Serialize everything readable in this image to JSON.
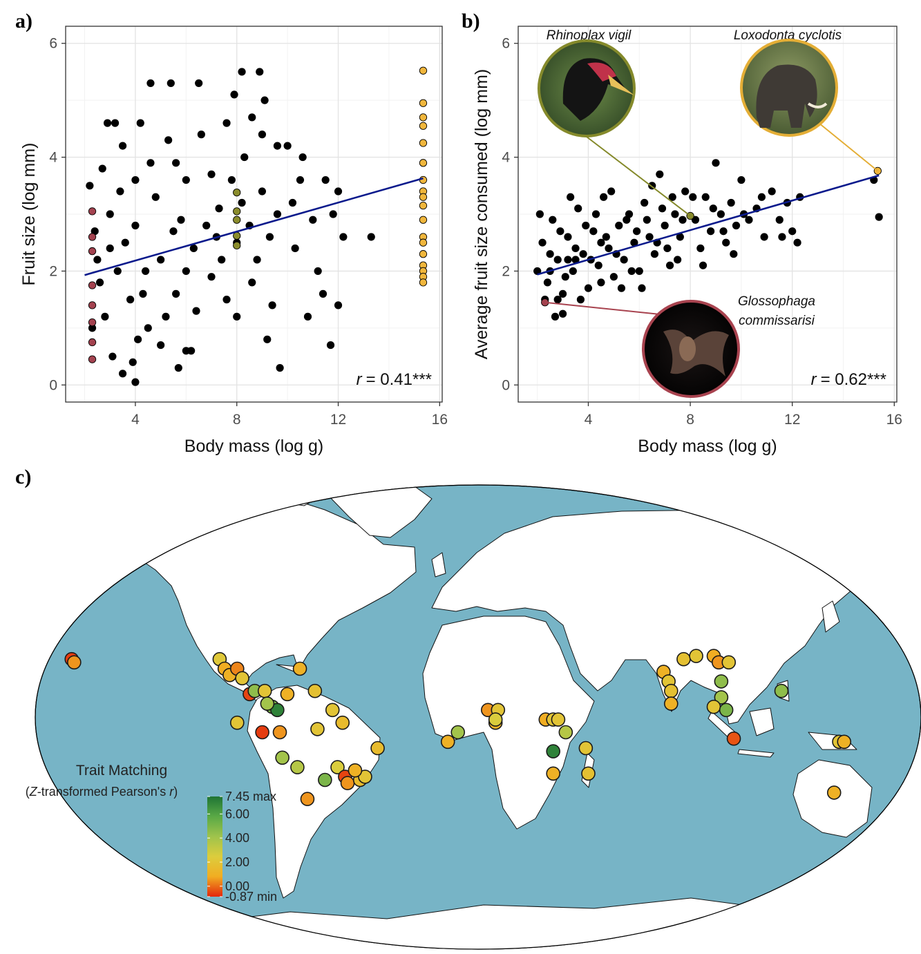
{
  "chart_data": [
    {
      "type": "scatter",
      "label": "a)",
      "xlabel": "Body mass (log g)",
      "ylabel": "Fruit size (log mm)",
      "xlim": [
        1.25,
        16.1
      ],
      "ylim": [
        -0.3,
        6.3
      ],
      "xticks": [
        4,
        8,
        12,
        16
      ],
      "yticks": [
        0,
        2,
        4,
        6
      ],
      "grid": true,
      "series": [
        {
          "color": "#000000",
          "x": [
            2.2,
            2.5,
            2.8,
            3.0,
            3.3,
            3.5,
            3.8,
            4.0,
            4.2,
            4.5,
            4.8,
            5.0,
            5.3,
            5.6,
            6.0,
            6.3,
            6.6,
            7.0,
            7.3,
            7.6,
            8.0,
            8.3,
            8.6,
            9.0,
            9.3,
            9.6,
            2.3,
            2.7,
            3.1,
            3.6,
            4.1,
            4.6,
            5.2,
            5.8,
            6.4,
            7.0,
            7.6,
            8.2,
            8.8,
            9.4,
            2.4,
            2.9,
            3.4,
            3.9,
            4.4,
            5.0,
            5.6,
            6.2,
            6.8,
            7.4,
            8.0,
            8.6,
            9.2,
            9.6,
            3.2,
            4.6,
            5.4,
            6.5,
            7.9,
            8.2,
            8.9,
            9.1,
            10.0,
            10.5,
            11.0,
            11.5,
            12.0,
            12.2,
            13.3,
            11.7,
            9.7,
            6.0,
            10.8,
            11.2,
            12.0,
            3.5,
            4.0,
            5.7,
            2.6,
            4.0,
            5.5,
            7.2,
            8.5,
            10.3,
            11.4,
            10.2,
            11.8,
            10.6,
            3.0,
            4.3,
            6.0,
            7.8,
            9.0
          ],
          "values": [
            3.5,
            2.2,
            1.2,
            3.0,
            2.0,
            4.2,
            1.5,
            2.8,
            4.6,
            1.0,
            3.3,
            2.2,
            4.3,
            1.6,
            3.6,
            2.4,
            4.4,
            1.9,
            3.1,
            4.6,
            2.5,
            4.0,
            1.8,
            3.4,
            2.6,
            4.2,
            1.0,
            3.8,
            0.5,
            2.5,
            0.8,
            3.9,
            1.2,
            2.9,
            1.3,
            3.7,
            1.5,
            3.2,
            2.2,
            1.4,
            2.7,
            4.6,
            3.4,
            0.4,
            2.0,
            0.7,
            3.9,
            0.6,
            2.8,
            2.2,
            1.2,
            4.7,
            0.8,
            3.0,
            4.6,
            5.3,
            5.3,
            5.3,
            5.1,
            5.5,
            5.5,
            5.0,
            4.2,
            3.6,
            2.9,
            3.6,
            3.4,
            2.6,
            2.6,
            0.7,
            0.3,
            0.6,
            1.2,
            2.0,
            1.4,
            0.2,
            0.05,
            0.3,
            1.8,
            3.6,
            2.7,
            2.6,
            2.8,
            2.4,
            1.6,
            3.2,
            3.0,
            4.0,
            2.4,
            1.6,
            2.0,
            3.6,
            4.4
          ]
        },
        {
          "color": "#a3424f",
          "x": [
            2.3,
            2.3,
            2.3,
            2.3,
            2.3,
            2.3,
            2.3,
            2.3
          ],
          "values": [
            3.05,
            2.6,
            2.35,
            1.75,
            1.4,
            1.1,
            0.75,
            0.45
          ]
        },
        {
          "color": "#8a8c2c",
          "x": [
            8.0,
            8.0,
            8.0,
            8.0,
            8.0
          ],
          "values": [
            3.38,
            3.05,
            2.9,
            2.62,
            2.45
          ]
        },
        {
          "color": "#f0b63c",
          "x": [
            15.35,
            15.35,
            15.35,
            15.35,
            15.35,
            15.35,
            15.35,
            15.35,
            15.35,
            15.35,
            15.35,
            15.35,
            15.35,
            15.35,
            15.35,
            15.35,
            15.35,
            15.35
          ],
          "values": [
            5.52,
            4.95,
            4.7,
            4.55,
            4.25,
            3.9,
            3.6,
            3.4,
            3.3,
            3.15,
            2.9,
            2.6,
            2.5,
            2.3,
            2.1,
            2.0,
            1.9,
            1.8
          ]
        }
      ],
      "fit": {
        "color": "#0a1a8c",
        "x": [
          2.0,
          15.35
        ],
        "values": [
          1.93,
          3.63
        ]
      },
      "stat": {
        "symbol": "r",
        "text": "= 0.41***"
      }
    },
    {
      "type": "scatter",
      "label": "b)",
      "xlabel": "Body mass (log g)",
      "ylabel": "Average fruit size consumed (log mm)",
      "xlim": [
        1.25,
        16.1
      ],
      "ylim": [
        -0.3,
        6.3
      ],
      "xticks": [
        4,
        8,
        12,
        16
      ],
      "yticks": [
        0,
        2,
        4,
        6
      ],
      "grid": true,
      "series": [
        {
          "color": "#000000",
          "x": [
            2.0,
            2.2,
            2.4,
            2.6,
            2.8,
            3.0,
            3.2,
            3.4,
            3.6,
            3.8,
            4.0,
            4.2,
            4.4,
            4.6,
            4.8,
            5.0,
            5.2,
            5.4,
            5.6,
            5.8,
            6.0,
            6.2,
            6.4,
            6.6,
            6.8,
            7.0,
            7.2,
            7.4,
            7.6,
            7.8,
            8.2,
            8.4,
            8.6,
            8.8,
            9.0,
            9.2,
            9.4,
            9.6,
            9.8,
            10.0,
            10.3,
            10.6,
            10.9,
            11.2,
            11.5,
            11.8,
            12.2,
            12.3,
            12.0,
            15.2,
            15.4,
            2.1,
            2.3,
            2.5,
            2.7,
            2.9,
            3.1,
            3.3,
            3.5,
            3.7,
            3.9,
            4.1,
            4.3,
            4.5,
            4.7,
            4.9,
            5.1,
            5.3,
            5.5,
            5.7,
            5.9,
            6.1,
            6.3,
            6.5,
            6.7,
            6.9,
            7.1,
            7.3,
            7.5,
            7.7,
            8.1,
            8.5,
            8.9,
            9.3,
            9.7,
            10.1,
            10.8,
            11.6,
            3.0,
            2.8,
            3.5,
            4.5,
            3.2,
            2.5
          ],
          "values": [
            2.0,
            2.5,
            1.8,
            2.9,
            2.2,
            1.6,
            2.6,
            2.0,
            3.1,
            2.3,
            1.7,
            2.7,
            2.1,
            3.3,
            2.4,
            1.9,
            2.8,
            2.2,
            3.0,
            2.5,
            2.0,
            3.2,
            2.6,
            2.3,
            3.7,
            2.8,
            2.1,
            3.0,
            2.6,
            3.4,
            2.9,
            2.4,
            3.3,
            2.7,
            3.9,
            3.0,
            2.5,
            3.2,
            2.8,
            3.6,
            2.9,
            3.1,
            2.6,
            3.4,
            2.9,
            3.2,
            2.5,
            3.3,
            2.7,
            3.6,
            2.95,
            3.0,
            1.5,
            2.3,
            1.2,
            2.7,
            1.9,
            3.3,
            2.4,
            1.5,
            2.8,
            2.2,
            3.0,
            1.8,
            2.6,
            3.4,
            2.3,
            1.7,
            2.9,
            2.0,
            2.7,
            1.7,
            2.9,
            3.5,
            2.5,
            3.1,
            2.4,
            3.3,
            2.2,
            2.9,
            3.3,
            2.1,
            3.1,
            2.7,
            2.3,
            3.0,
            3.3,
            2.6,
            1.25,
            1.5,
            2.2,
            2.5,
            2.2,
            2.0
          ]
        },
        {
          "color": "#a3424f",
          "x": [
            2.3
          ],
          "values": [
            1.45
          ]
        },
        {
          "color": "#8a8c2c",
          "x": [
            8.0
          ],
          "values": [
            2.97
          ]
        },
        {
          "color": "#f0b63c",
          "x": [
            15.35
          ],
          "values": [
            3.76
          ]
        }
      ],
      "fit": {
        "color": "#0a1a8c",
        "x": [
          2.0,
          15.4
        ],
        "values": [
          1.94,
          3.68
        ]
      },
      "stat": {
        "symbol": "r",
        "text": "= 0.62***"
      },
      "annotations": [
        "Rhinoplax vigil",
        "Loxodonta cyclotis",
        "Glossophaga",
        "commissarisi"
      ]
    },
    {
      "type": "map",
      "label": "c)",
      "legend_title": "Trait Matching",
      "legend_subtitle": [
        "(",
        "Z",
        "-transformed Pearson's ",
        "r",
        ")"
      ],
      "clim": [
        -0.87,
        7.45
      ],
      "cticks": [
        {
          "value": 7.45,
          "label": "7.45 max"
        },
        {
          "value": 6,
          "label": "6.00"
        },
        {
          "value": 4,
          "label": "4.00"
        },
        {
          "value": 2,
          "label": "2.00"
        },
        {
          "value": 0,
          "label": "0.00"
        },
        {
          "value": -0.87,
          "label": "-0.87 min"
        }
      ],
      "colors": [
        "#e3260c",
        "#f1ad22",
        "#dccd3d",
        "#9fc34c",
        "#5aa946",
        "#1f7434"
      ],
      "lon": [
        -156,
        -155,
        -97,
        -95,
        -93,
        -90,
        -88,
        -65,
        -85,
        -83,
        -79,
        -76,
        -74,
        -78,
        -70,
        -59,
        -52,
        -90,
        -80,
        -73,
        -58,
        -48,
        -34,
        -72,
        -66,
        -55,
        -50,
        -47,
        -46,
        -41,
        -39,
        -43,
        -62,
        -6,
        -2,
        10,
        13,
        14,
        13,
        33,
        36,
        38,
        41,
        36,
        36,
        49,
        50,
        80,
        82,
        83,
        83,
        88,
        93,
        100,
        102,
        106,
        103,
        103,
        100,
        105,
        108,
        127,
        150,
        152,
        148
      ],
      "lat": [
        23,
        22,
        23,
        20,
        18,
        20,
        17,
        20,
        12,
        13,
        13,
        8,
        7,
        9,
        12,
        13,
        7,
        3,
        0,
        0,
        1,
        3,
        -5,
        -8,
        -11,
        -15,
        -11,
        -14,
        -16,
        -15,
        -14,
        -12,
        -21,
        -3,
        0,
        7,
        3,
        7,
        4,
        4,
        4,
        4,
        0,
        -6,
        -13,
        -5,
        -13,
        19,
        16,
        13,
        9,
        23,
        24,
        24,
        22,
        22,
        16,
        11,
        8,
        7,
        -2,
        13,
        -3,
        -3,
        -19
      ],
      "values": [
        -0.6,
        0.5,
        2.2,
        0.8,
        1.0,
        0.3,
        2.0,
        1.0,
        -0.5,
        4.5,
        2.0,
        5.0,
        7.0,
        4.0,
        1.0,
        1.8,
        2.0,
        2.0,
        -0.6,
        0.5,
        2.0,
        1.5,
        1.5,
        4.0,
        3.5,
        5.0,
        2.5,
        -0.5,
        0.5,
        1.5,
        2.0,
        1.0,
        0.5,
        1.0,
        4.0,
        0.5,
        1.0,
        2.0,
        2.5,
        0.8,
        2.0,
        2.0,
        3.5,
        7.0,
        1.0,
        2.0,
        1.8,
        1.0,
        2.0,
        1.8,
        1.0,
        1.8,
        2.0,
        0.8,
        0.5,
        2.0,
        4.5,
        4.0,
        2.0,
        5.0,
        -0.3,
        4.5,
        2.0,
        1.0,
        1.0
      ]
    }
  ]
}
